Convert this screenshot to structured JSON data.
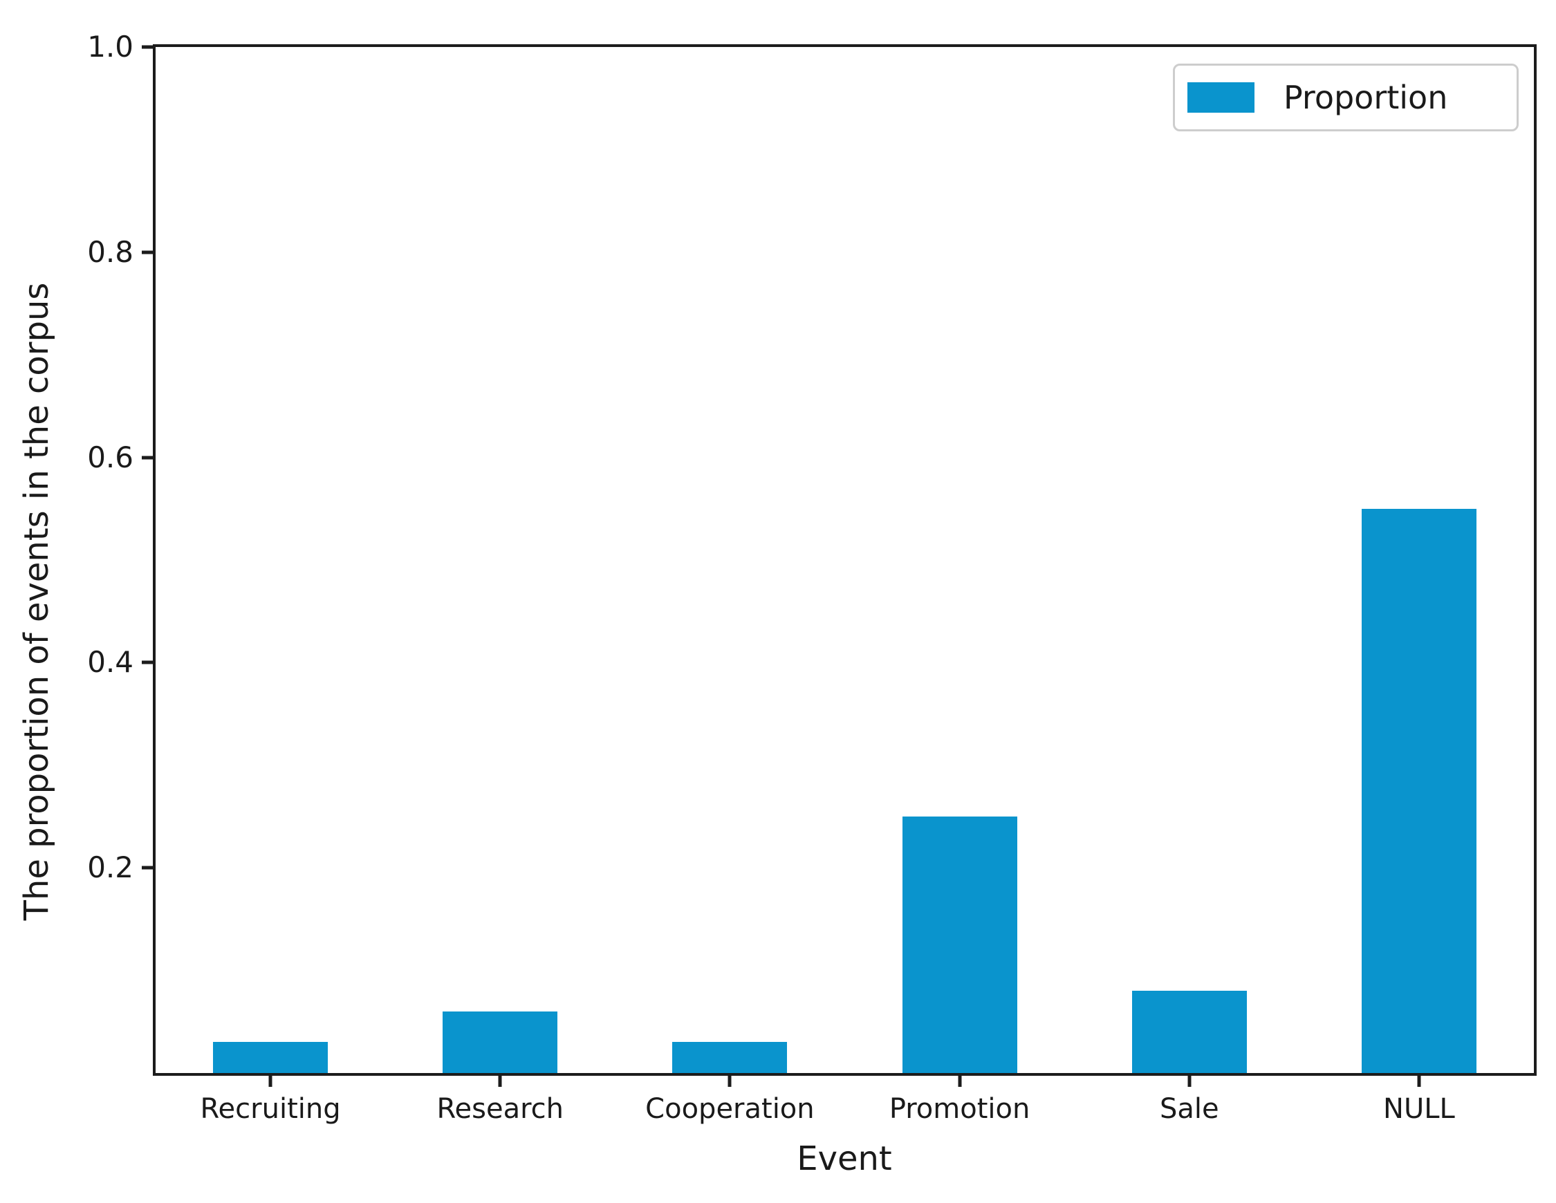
{
  "chart_data": {
    "type": "bar",
    "title": "",
    "xlabel": "Event",
    "ylabel": "The proportion of events in the corpus",
    "categories": [
      "Recruiting",
      "Research",
      "Cooperation",
      "Promotion",
      "Sale",
      "NULL"
    ],
    "series": [
      {
        "name": "Proportion",
        "values": [
          0.03,
          0.06,
          0.03,
          0.25,
          0.08,
          0.55
        ]
      }
    ],
    "ylim": [
      0,
      1.0
    ],
    "yticks": [
      0.2,
      0.4,
      0.6,
      0.8,
      1.0
    ],
    "ytick_labels": [
      "0.2",
      "0.4",
      "0.6",
      "0.8",
      "1.0"
    ],
    "grid": false,
    "legend": {
      "entries": [
        "Proportion"
      ],
      "position": "upper right"
    },
    "colors": {
      "bar": "#0A94CD",
      "axis": "#1c1c1c",
      "text": "#1a1a1a",
      "legend_border": "#cdcdcd",
      "background": "#ffffff"
    }
  }
}
